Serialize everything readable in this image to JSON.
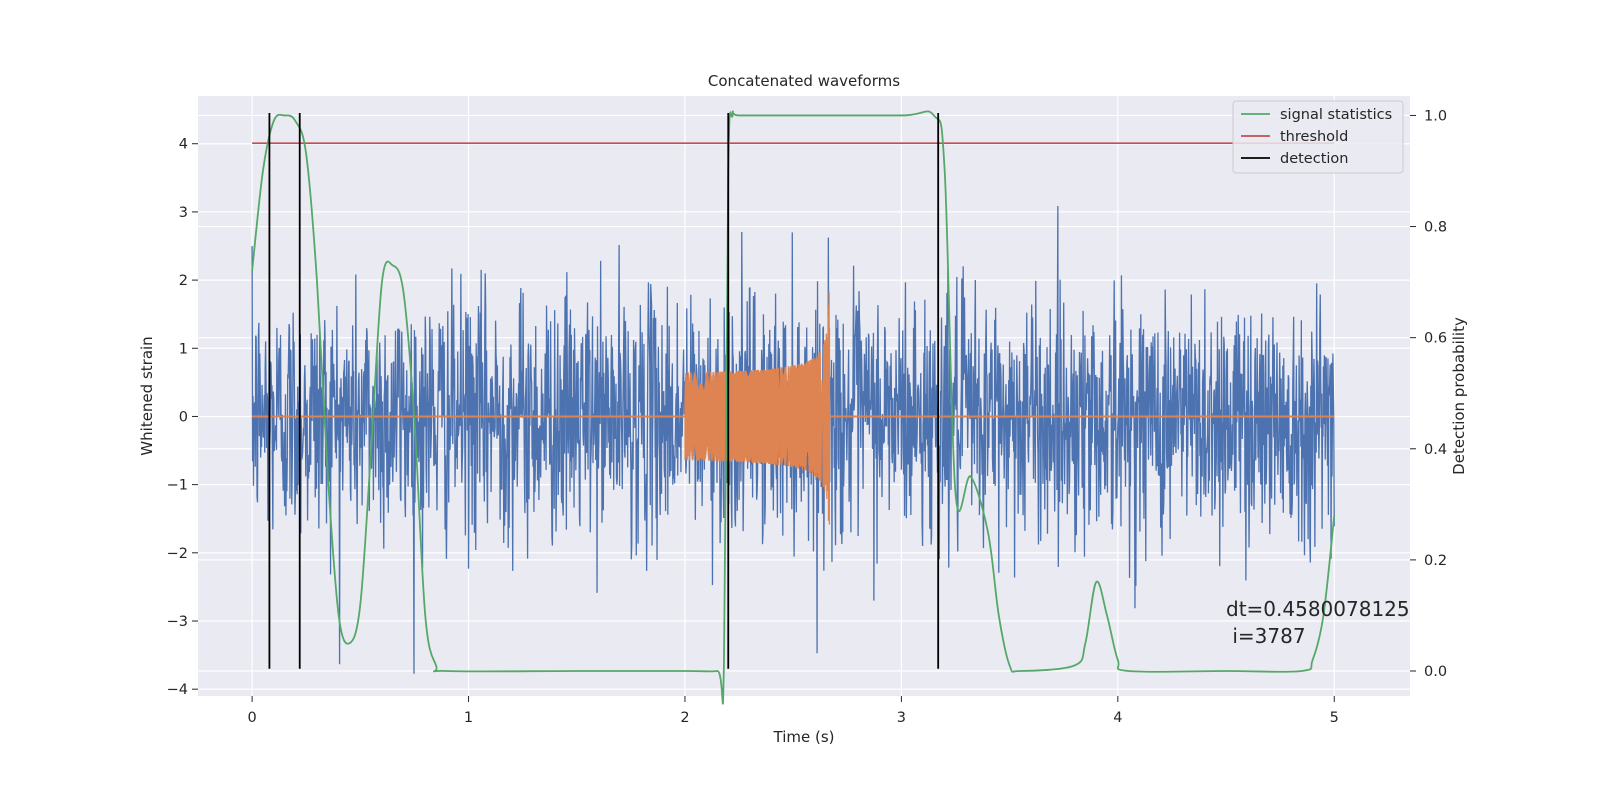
{
  "chart_data": {
    "type": "line",
    "title": "Concatenated waveforms",
    "xlabel": "Time (s)",
    "ylabel": "Whitened strain",
    "ylabel_right": "Detection probability",
    "xlim": [
      -0.25,
      5.35
    ],
    "ylim": [
      -4.1,
      4.7
    ],
    "ylim_right": [
      -0.045,
      1.035
    ],
    "x_ticks": [
      0,
      1,
      2,
      3,
      4,
      5
    ],
    "y_ticks": [
      -4,
      -3,
      -2,
      -1,
      0,
      1,
      2,
      3,
      4
    ],
    "y_ticks_right": [
      0.0,
      0.2,
      0.4,
      0.6,
      0.8,
      1.0
    ],
    "y_tick_labels": [
      "−4",
      "−3",
      "−2",
      "−1",
      "0",
      "1",
      "2",
      "3",
      "4"
    ],
    "y_tick_labels_right": [
      "0.0",
      "0.2",
      "0.4",
      "0.6",
      "0.8",
      "1.0"
    ],
    "x_tick_labels": [
      "0",
      "1",
      "2",
      "3",
      "4",
      "5"
    ],
    "grid": true,
    "legend_position": "top-right",
    "legend": [
      "signal statistics",
      "threshold",
      "detection"
    ],
    "annotation": {
      "line1": "dt=0.4580078125",
      "line2": " i=3787"
    },
    "colors": {
      "background": "#EAEAF2",
      "grid": "#FFFFFF",
      "strain": "#4C72B0",
      "injection": "#DD8452",
      "signal_statistics": "#55A868",
      "threshold": "#C44E52",
      "detection": "#000000"
    },
    "series": [
      {
        "name": "signal statistics",
        "axis": "right",
        "x": [
          0,
          0.05,
          0.1,
          0.15,
          0.2,
          0.25,
          0.3,
          0.35,
          0.4,
          0.45,
          0.5,
          0.55,
          0.6,
          0.65,
          0.7,
          0.75,
          0.8,
          0.85,
          0.9,
          1.5,
          2.0,
          2.15,
          2.18,
          2.2,
          2.22,
          2.25,
          2.5,
          3.0,
          3.15,
          3.2,
          3.25,
          3.32,
          3.4,
          3.45,
          3.5,
          3.55,
          3.8,
          3.85,
          3.9,
          3.95,
          4.0,
          4.05,
          4.5,
          4.85,
          4.9,
          4.95,
          5.0
        ],
        "values": [
          0.72,
          0.9,
          0.99,
          1.0,
          0.99,
          0.93,
          0.7,
          0.35,
          0.1,
          0.05,
          0.12,
          0.4,
          0.7,
          0.73,
          0.68,
          0.45,
          0.1,
          0.01,
          0.0,
          0.0,
          0.0,
          0.0,
          0.01,
          0.9,
          1.0,
          1.0,
          1.0,
          1.0,
          1.0,
          0.9,
          0.32,
          0.35,
          0.25,
          0.1,
          0.01,
          0.0,
          0.01,
          0.05,
          0.16,
          0.1,
          0.02,
          0.0,
          0.0,
          0.0,
          0.02,
          0.1,
          0.28
        ]
      },
      {
        "name": "threshold",
        "axis": "right",
        "x": [
          0,
          5
        ],
        "values": [
          0.95,
          0.95
        ]
      },
      {
        "name": "detection",
        "axis": "left",
        "x": [
          0.08,
          0.22,
          2.2,
          3.17
        ],
        "ymin": -3.7,
        "ymax": 4.45
      },
      {
        "name": "whitened strain",
        "axis": "left",
        "x_range": [
          0,
          5
        ],
        "spread": 1.2
      },
      {
        "name": "injected waveform",
        "axis": "left",
        "x_range": [
          2.0,
          2.67
        ],
        "peak_amplitude": 1.85,
        "peak_time": 2.66
      }
    ]
  }
}
